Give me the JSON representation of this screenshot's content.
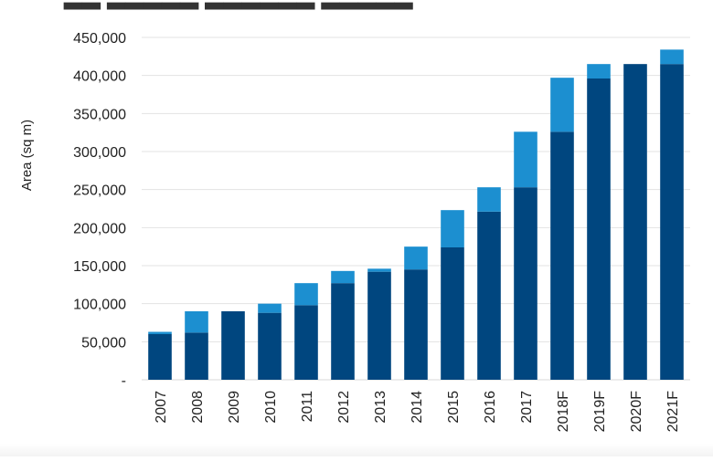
{
  "chart_data": {
    "type": "bar",
    "stacked": true,
    "title": "",
    "xlabel": "",
    "ylabel": "Area (sq m)",
    "ylim": [
      0,
      450000
    ],
    "yticks": [
      "-",
      "50,000",
      "100,000",
      "150,000",
      "200,000",
      "250,000",
      "300,000",
      "350,000",
      "400,000",
      "450,000"
    ],
    "ytick_values": [
      0,
      50000,
      100000,
      150000,
      200000,
      250000,
      300000,
      350000,
      400000,
      450000
    ],
    "grid": true,
    "legend": "none",
    "categories": [
      "2007",
      "2008",
      "2009",
      "2010",
      "2011",
      "2012",
      "2013",
      "2014",
      "2015",
      "2016",
      "2017",
      "2018F",
      "2019F",
      "2020F",
      "2021F"
    ],
    "series": [
      {
        "color": "#00467f",
        "values": [
          60000,
          62000,
          90000,
          88000,
          98000,
          127000,
          142000,
          145000,
          174000,
          221000,
          253000,
          326000,
          396000,
          415000,
          415000
        ]
      },
      {
        "color": "#1c8fd0",
        "values": [
          3000,
          28000,
          0,
          12000,
          29000,
          16000,
          4000,
          30000,
          49000,
          32000,
          73000,
          71000,
          19000,
          0,
          19000
        ]
      }
    ]
  }
}
